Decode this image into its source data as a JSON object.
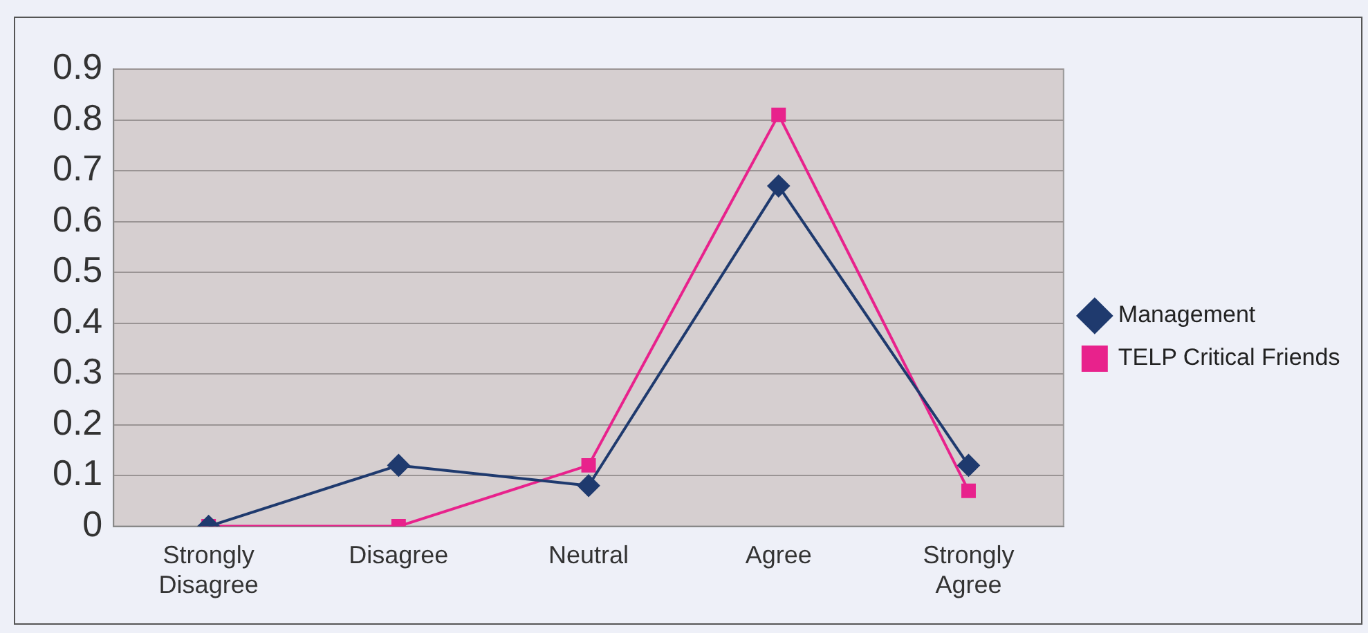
{
  "chart_data": {
    "type": "line",
    "categories": [
      "Strongly Disagree",
      "Disagree",
      "Neutral",
      "Agree",
      "Strongly Agree"
    ],
    "series": [
      {
        "name": "Management",
        "color": "#1f3a6e",
        "values": [
          0,
          0.12,
          0.08,
          0.67,
          0.12
        ],
        "marker": "diamond"
      },
      {
        "name": "TELP Critical Friends",
        "color": "#e8228c",
        "values": [
          0,
          0,
          0.12,
          0.81,
          0.07
        ],
        "marker": "square"
      }
    ],
    "ylim": [
      0,
      0.9
    ],
    "yticks": [
      0,
      0.1,
      0.2,
      0.3,
      0.4,
      0.5,
      0.6,
      0.7,
      0.8,
      0.9
    ],
    "grid": "y",
    "legend": "right"
  }
}
